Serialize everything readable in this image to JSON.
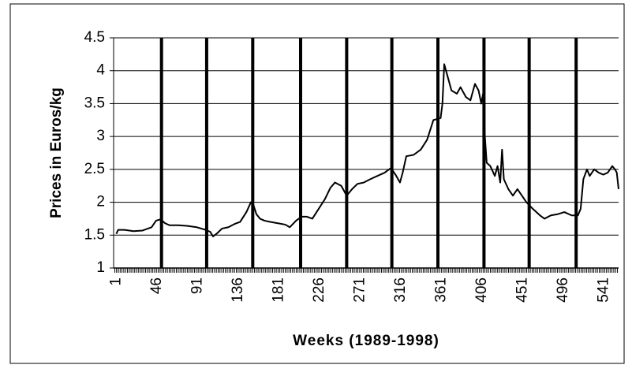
{
  "chart_data": {
    "type": "line",
    "x_label": "Weeks (1989-1998)",
    "y_label": "Prices in Euros/kg",
    "x": [
      1,
      3,
      10,
      20,
      30,
      40,
      45,
      50,
      55,
      60,
      70,
      80,
      90,
      100,
      105,
      108,
      112,
      118,
      125,
      132,
      138,
      145,
      150,
      153,
      156,
      160,
      165,
      172,
      180,
      188,
      193,
      200,
      206,
      212,
      218,
      225,
      232,
      238,
      243,
      250,
      256,
      262,
      268,
      275,
      282,
      290,
      298,
      305,
      310,
      315,
      318,
      322,
      330,
      338,
      345,
      352,
      360,
      362,
      364,
      368,
      372,
      378,
      382,
      388,
      393,
      398,
      402,
      405,
      407,
      409,
      411,
      415,
      420,
      423,
      426,
      428,
      430,
      435,
      440,
      445,
      450,
      455,
      462,
      470,
      475,
      482,
      490,
      497,
      505,
      512,
      515,
      518,
      522,
      525,
      530,
      535,
      540,
      545,
      550,
      553,
      555,
      557
    ],
    "series": [
      {
        "name": "Price",
        "color": "#000000",
        "values": [
          1.52,
          1.58,
          1.58,
          1.56,
          1.57,
          1.62,
          1.72,
          1.74,
          1.68,
          1.65,
          1.65,
          1.64,
          1.62,
          1.58,
          1.55,
          1.48,
          1.52,
          1.6,
          1.62,
          1.67,
          1.7,
          1.85,
          2.0,
          1.95,
          1.82,
          1.75,
          1.72,
          1.7,
          1.68,
          1.66,
          1.62,
          1.72,
          1.78,
          1.78,
          1.75,
          1.9,
          2.05,
          2.22,
          2.3,
          2.25,
          2.1,
          2.2,
          2.28,
          2.3,
          2.35,
          2.4,
          2.45,
          2.52,
          2.42,
          2.3,
          2.45,
          2.7,
          2.72,
          2.8,
          2.95,
          3.25,
          3.28,
          3.5,
          4.1,
          3.9,
          3.7,
          3.65,
          3.75,
          3.6,
          3.55,
          3.8,
          3.7,
          3.5,
          3.65,
          3.0,
          2.6,
          2.55,
          2.4,
          2.55,
          2.3,
          2.8,
          2.35,
          2.2,
          2.1,
          2.2,
          2.1,
          2.0,
          1.9,
          1.8,
          1.75,
          1.8,
          1.82,
          1.85,
          1.8,
          1.8,
          1.9,
          2.35,
          2.5,
          2.4,
          2.5,
          2.45,
          2.42,
          2.45,
          2.55,
          2.5,
          2.45,
          2.2
        ]
      }
    ],
    "vlines": [
      51,
      101,
      152,
      205,
      256,
      306,
      357,
      408,
      458,
      510
    ],
    "xlim": [
      -2,
      557
    ],
    "xticks": [
      1,
      46,
      91,
      136,
      181,
      226,
      271,
      316,
      361,
      406,
      451,
      496,
      541
    ],
    "ylim": [
      1,
      4.5
    ],
    "yticks": [
      1,
      1.5,
      2,
      2.5,
      3,
      3.5,
      4,
      4.5
    ],
    "grid": true
  }
}
